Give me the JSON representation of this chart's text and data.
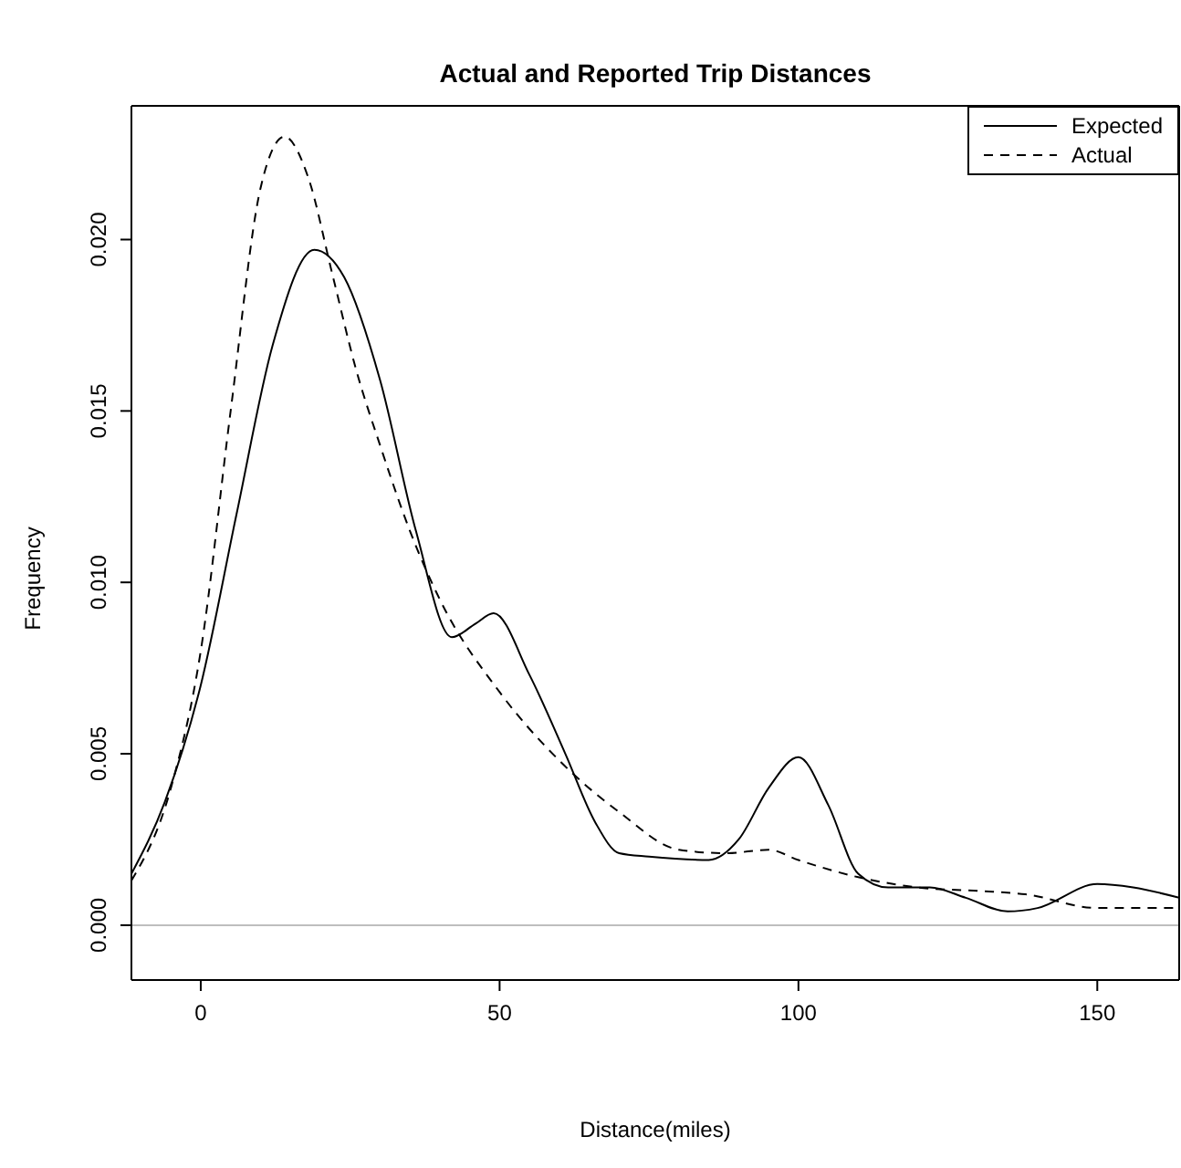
{
  "chart_data": {
    "type": "line",
    "title": "Actual and Reported Trip Distances",
    "xlabel": "Distance(miles)",
    "ylabel": "Frequency",
    "xlim": [
      -11.6,
      163.7
    ],
    "ylim": [
      -0.0016,
      0.0239
    ],
    "xticks": [
      0,
      50,
      100,
      150
    ],
    "yticks": [
      {
        "value": 0,
        "label": "0.000"
      },
      {
        "value": 0.005,
        "label": "0.005"
      },
      {
        "value": 0.01,
        "label": "0.010"
      },
      {
        "value": 0.015,
        "label": "0.015"
      },
      {
        "value": 0.02,
        "label": "0.020"
      }
    ],
    "grid": false,
    "legend": "top right",
    "marker": "none",
    "ref_lines": [
      {
        "axis": "y",
        "value": 0,
        "color": "#bebebe"
      }
    ],
    "series": [
      {
        "name": "Expected",
        "color": "#000000",
        "line_style": "solid",
        "x": [
          -11.6,
          -6,
          0,
          6,
          12,
          19,
          24,
          30,
          36,
          42,
          46,
          49,
          55,
          61,
          66,
          70,
          75,
          85,
          90,
          95,
          100,
          105,
          110,
          115,
          122,
          128,
          135,
          140,
          150,
          156,
          163.7
        ],
        "values": [
          0.0015,
          0.0036,
          0.007,
          0.012,
          0.0169,
          0.0197,
          0.0189,
          0.0159,
          0.0115,
          0.0084,
          0.0088,
          0.0091,
          0.0073,
          0.005,
          0.003,
          0.0021,
          0.002,
          0.0019,
          0.0025,
          0.004,
          0.0049,
          0.0035,
          0.0015,
          0.0011,
          0.0011,
          0.0008,
          0.0004,
          0.0005,
          0.0012,
          0.0011,
          0.0008
        ]
      },
      {
        "name": "Actual",
        "color": "#000000",
        "line_style": "dashed",
        "x": [
          -11.6,
          -5,
          0,
          5,
          10,
          14,
          18,
          22,
          26,
          30,
          35,
          40,
          50,
          60,
          70,
          80,
          88,
          95,
          100,
          110,
          120,
          130,
          138,
          150,
          163.7
        ],
        "values": [
          0.0013,
          0.004,
          0.008,
          0.015,
          0.0215,
          0.023,
          0.0218,
          0.019,
          0.0162,
          0.014,
          0.0115,
          0.0095,
          0.0068,
          0.0048,
          0.0033,
          0.0022,
          0.0021,
          0.0022,
          0.0019,
          0.0014,
          0.0011,
          0.001,
          0.0009,
          0.0005,
          0.0005
        ]
      }
    ]
  }
}
